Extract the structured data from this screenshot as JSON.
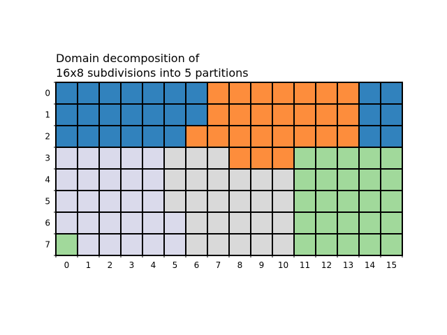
{
  "chart_data": {
    "type": "heatmap",
    "title_lines": [
      "Domain decomposition of",
      "16x8 subdivisions into 5 partitions"
    ],
    "xlabel": "",
    "ylabel": "",
    "x_ticks": [
      "0",
      "1",
      "2",
      "3",
      "4",
      "5",
      "6",
      "7",
      "8",
      "9",
      "10",
      "11",
      "12",
      "13",
      "14",
      "15"
    ],
    "y_ticks": [
      "0",
      "1",
      "2",
      "3",
      "4",
      "5",
      "6",
      "7"
    ],
    "grid": true,
    "cell_border_color": "#000000",
    "partition_colors": [
      "#3182bd",
      "#fd8d3c",
      "#dadaeb",
      "#d9d9d9",
      "#a1d99b"
    ],
    "cells": [
      [
        0,
        0,
        0,
        0,
        0,
        0,
        0,
        1,
        1,
        1,
        1,
        1,
        1,
        1,
        0,
        0
      ],
      [
        0,
        0,
        0,
        0,
        0,
        0,
        0,
        1,
        1,
        1,
        1,
        1,
        1,
        1,
        0,
        0
      ],
      [
        0,
        0,
        0,
        0,
        0,
        0,
        1,
        1,
        1,
        1,
        1,
        1,
        1,
        1,
        0,
        0
      ],
      [
        2,
        2,
        2,
        2,
        2,
        3,
        3,
        3,
        1,
        1,
        1,
        4,
        4,
        4,
        4,
        4
      ],
      [
        2,
        2,
        2,
        2,
        2,
        3,
        3,
        3,
        3,
        3,
        3,
        4,
        4,
        4,
        4,
        4
      ],
      [
        2,
        2,
        2,
        2,
        2,
        3,
        3,
        3,
        3,
        3,
        3,
        4,
        4,
        4,
        4,
        4
      ],
      [
        2,
        2,
        2,
        2,
        2,
        2,
        3,
        3,
        3,
        3,
        3,
        4,
        4,
        4,
        4,
        4
      ],
      [
        4,
        2,
        2,
        2,
        2,
        2,
        3,
        3,
        3,
        3,
        3,
        4,
        4,
        4,
        4,
        4
      ]
    ]
  }
}
